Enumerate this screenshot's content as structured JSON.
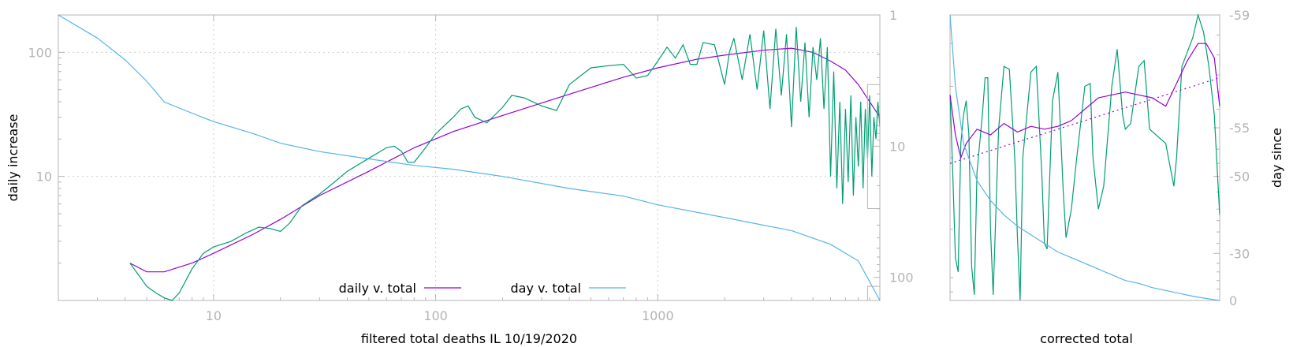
{
  "colors": {
    "daily": "#9400d3",
    "day": "#56b4e9",
    "raw": "#009e73",
    "axis": "#b4b4b4"
  },
  "chart_data": [
    {
      "type": "line",
      "xlabel": "filtered total deaths IL 10/19/2020",
      "ylabel": "daily increase",
      "x_scale": "log",
      "y_scale": "log",
      "y2_scale": "log",
      "xlim": [
        2,
        10000
      ],
      "ylim": [
        1,
        200
      ],
      "y2lim": [
        1,
        150
      ],
      "y2_reversed": true,
      "x_ticks": [
        "10",
        "100",
        "1000"
      ],
      "y_ticks": [
        "10",
        "100"
      ],
      "y2_ticks": [
        "1",
        "10",
        "100"
      ],
      "grid": true,
      "legend_position": "bottom-center",
      "legend": [
        "daily v. total",
        "day v. total"
      ],
      "series": [
        {
          "name": "daily v. total",
          "color_key": "daily",
          "axis": "y",
          "x": [
            4.2,
            5,
            6,
            8,
            10,
            15,
            20,
            30,
            50,
            80,
            120,
            200,
            400,
            700,
            1000,
            1500,
            2000,
            3000,
            4000,
            5000,
            6000,
            7000,
            8000,
            10000
          ],
          "y": [
            2.0,
            1.7,
            1.7,
            2.0,
            2.4,
            3.4,
            4.5,
            7,
            11,
            17,
            23,
            31,
            46,
            63,
            75,
            88,
            95,
            104,
            108,
            100,
            85,
            72,
            55,
            30
          ]
        },
        {
          "name": "day v. total",
          "color_key": "day",
          "axis": "y2",
          "x": [
            2,
            3,
            4,
            5,
            6,
            8,
            10,
            15,
            20,
            30,
            50,
            80,
            120,
            200,
            400,
            700,
            1000,
            2000,
            4000,
            6000,
            8000,
            10000
          ],
          "y": [
            1,
            1.5,
            2.2,
            3.2,
            4.6,
            5.6,
            6.5,
            8,
            9.5,
            11,
            12.5,
            14,
            15,
            17,
            21,
            24,
            28,
            35,
            44,
            56,
            75,
            150
          ]
        },
        {
          "color_key": "raw",
          "axis": "y",
          "x": [
            4.2,
            4.6,
            5,
            5.5,
            6,
            6.5,
            7,
            8,
            9,
            10,
            12,
            14,
            16,
            18,
            20,
            22,
            25,
            30,
            35,
            40,
            50,
            60,
            65,
            70,
            75,
            80,
            90,
            100,
            120,
            130,
            140,
            150,
            170,
            200,
            220,
            250,
            300,
            350,
            400,
            500,
            600,
            700,
            800,
            900,
            1000,
            1100,
            1200,
            1300,
            1400,
            1500,
            1600,
            1800,
            2000,
            2100,
            2200,
            2400,
            2600,
            2800,
            3000,
            3200,
            3400,
            3600,
            3800,
            4000,
            4200,
            4400,
            4600,
            4800,
            5000,
            5200,
            5400,
            5600,
            5800,
            6000,
            6200,
            6400,
            6600,
            6800,
            7000,
            7200,
            7400,
            7600,
            7800,
            8000,
            8200,
            8400,
            8600,
            8800,
            9000,
            9200,
            9400,
            9600,
            9800,
            10000
          ],
          "y": [
            2.0,
            1.6,
            1.3,
            1.15,
            1.05,
            1.0,
            1.15,
            1.8,
            2.4,
            2.7,
            3.0,
            3.5,
            3.9,
            3.8,
            3.6,
            4.2,
            5.8,
            7.2,
            9,
            11,
            14,
            17,
            17.5,
            16,
            13,
            13,
            17,
            22,
            30,
            35,
            37,
            30,
            27,
            36,
            45,
            43,
            37,
            34,
            55,
            75,
            78,
            80,
            62,
            65,
            85,
            110,
            90,
            115,
            80,
            80,
            120,
            115,
            55,
            100,
            130,
            60,
            140,
            50,
            150,
            35,
            155,
            45,
            140,
            25,
            160,
            40,
            120,
            30,
            110,
            60,
            130,
            35,
            110,
            10,
            70,
            8,
            40,
            6,
            35,
            9,
            45,
            7,
            30,
            12,
            40,
            8,
            35,
            14,
            45,
            10,
            30,
            20,
            40,
            25
          ]
        },
        {
          "color_key": "axis",
          "axis": "y",
          "style": "box",
          "x": [
            8800,
            8800,
            10000,
            10000,
            8800
          ],
          "y": [
            5.5,
            55,
            55,
            5.5,
            5.5
          ]
        },
        {
          "color_key": "axis",
          "axis": "y",
          "style": "box",
          "x": [
            8800,
            8800,
            10000
          ],
          "y": [
            1,
            1.3,
            1.3
          ]
        }
      ]
    },
    {
      "type": "line",
      "xlabel": "corrected total",
      "ylabel": "day since",
      "y2_ticks": [
        "-59",
        "-55",
        "-50",
        "-30",
        "0"
      ],
      "series": [
        {
          "color_key": "raw",
          "x": [
            0,
            0.01,
            0.02,
            0.03,
            0.04,
            0.05,
            0.06,
            0.07,
            0.08,
            0.09,
            0.1,
            0.12,
            0.13,
            0.14,
            0.15,
            0.16,
            0.18,
            0.2,
            0.22,
            0.24,
            0.25,
            0.26,
            0.27,
            0.3,
            0.32,
            0.34,
            0.35,
            0.36,
            0.38,
            0.4,
            0.42,
            0.43,
            0.45,
            0.47,
            0.5,
            0.52,
            0.53,
            0.55,
            0.57,
            0.6,
            0.62,
            0.64,
            0.65,
            0.67,
            0.7,
            0.72,
            0.74,
            0.8,
            0.82,
            0.83,
            0.84,
            0.86,
            0.9,
            0.92,
            0.94,
            0.96,
            0.98,
            1.0
          ],
          "y": [
            0.28,
            0.55,
            0.85,
            0.9,
            0.45,
            0.35,
            0.3,
            0.42,
            0.88,
            0.98,
            0.55,
            0.35,
            0.22,
            0.22,
            0.75,
            0.98,
            0.4,
            0.18,
            0.19,
            0.5,
            0.78,
            1.0,
            0.5,
            0.2,
            0.18,
            0.55,
            0.8,
            0.82,
            0.3,
            0.2,
            0.62,
            0.78,
            0.68,
            0.5,
            0.25,
            0.24,
            0.5,
            0.68,
            0.6,
            0.25,
            0.12,
            0.35,
            0.4,
            0.38,
            0.18,
            0.16,
            0.4,
            0.45,
            0.55,
            0.6,
            0.5,
            0.18,
            0.08,
            0.0,
            0.06,
            0.18,
            0.35,
            0.7
          ]
        },
        {
          "color_key": "daily",
          "x": [
            0,
            0.02,
            0.04,
            0.06,
            0.1,
            0.15,
            0.2,
            0.25,
            0.3,
            0.35,
            0.4,
            0.45,
            0.5,
            0.55,
            0.6,
            0.65,
            0.7,
            0.75,
            0.8,
            0.85,
            0.88,
            0.92,
            0.95,
            0.98,
            1.0
          ],
          "y": [
            0.28,
            0.42,
            0.5,
            0.45,
            0.4,
            0.42,
            0.38,
            0.41,
            0.39,
            0.4,
            0.39,
            0.37,
            0.33,
            0.29,
            0.28,
            0.27,
            0.28,
            0.29,
            0.32,
            0.22,
            0.16,
            0.1,
            0.1,
            0.15,
            0.32
          ]
        },
        {
          "color_key": "daily",
          "style": "dotted",
          "x": [
            0,
            1
          ],
          "y": [
            0.52,
            0.22
          ]
        },
        {
          "color_key": "day",
          "x": [
            0,
            0.02,
            0.05,
            0.1,
            0.15,
            0.2,
            0.25,
            0.3,
            0.35,
            0.4,
            0.45,
            0.5,
            0.55,
            0.6,
            0.65,
            0.7,
            0.75,
            0.8,
            0.85,
            0.9,
            0.95,
            1.0
          ],
          "y": [
            0.0,
            0.25,
            0.45,
            0.58,
            0.65,
            0.7,
            0.74,
            0.77,
            0.8,
            0.83,
            0.85,
            0.87,
            0.89,
            0.91,
            0.93,
            0.94,
            0.955,
            0.965,
            0.975,
            0.985,
            0.993,
            1.0
          ]
        }
      ]
    }
  ]
}
